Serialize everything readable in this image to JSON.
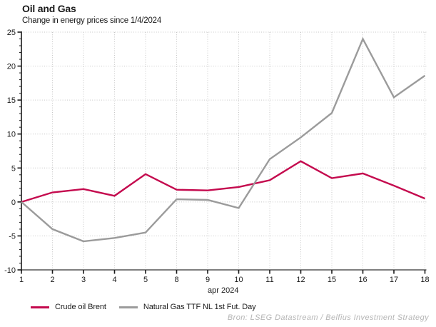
{
  "title": "Oil and Gas",
  "subtitle": "Change in energy prices since 1/4/2024",
  "source": "Bron: LSEG Datastream / Belfius Investment Strategy",
  "chart_data": {
    "type": "line",
    "categories": [
      "1",
      "2",
      "3",
      "4",
      "5",
      "8",
      "9",
      "10",
      "11",
      "12",
      "15",
      "16",
      "17",
      "18"
    ],
    "xlabel": "apr 2024",
    "ylim": [
      -10,
      25
    ],
    "ytick_step": 5,
    "yticks": [
      -10,
      -5,
      0,
      5,
      10,
      15,
      20,
      25
    ],
    "grid": "dotted gridlines at every x tick and every y major tick",
    "legend_position": "bottom-left",
    "series": [
      {
        "name": "Crude oil Brent",
        "color": "#C40A4E",
        "values": [
          0,
          1.4,
          1.9,
          0.9,
          4.1,
          1.8,
          1.7,
          2.2,
          3.2,
          6.0,
          3.5,
          4.2,
          2.4,
          0.5
        ]
      },
      {
        "name": "Natural Gas TTF NL 1st Fut. Day",
        "color": "#9B9B9B",
        "values": [
          0,
          -4.0,
          -5.8,
          -5.3,
          -4.5,
          0.4,
          0.3,
          -0.9,
          6.3,
          9.5,
          13.1,
          24.0,
          15.4,
          18.6
        ]
      }
    ]
  },
  "colors": {
    "accent_red": "#C40A4E",
    "line_gray": "#9B9B9B",
    "grid": "#C6C6C6",
    "axis": "#1A1A1A",
    "x_axis_line": "#7F7F7F",
    "source_text": "#B5B5B5",
    "background": "#FFFFFF"
  }
}
